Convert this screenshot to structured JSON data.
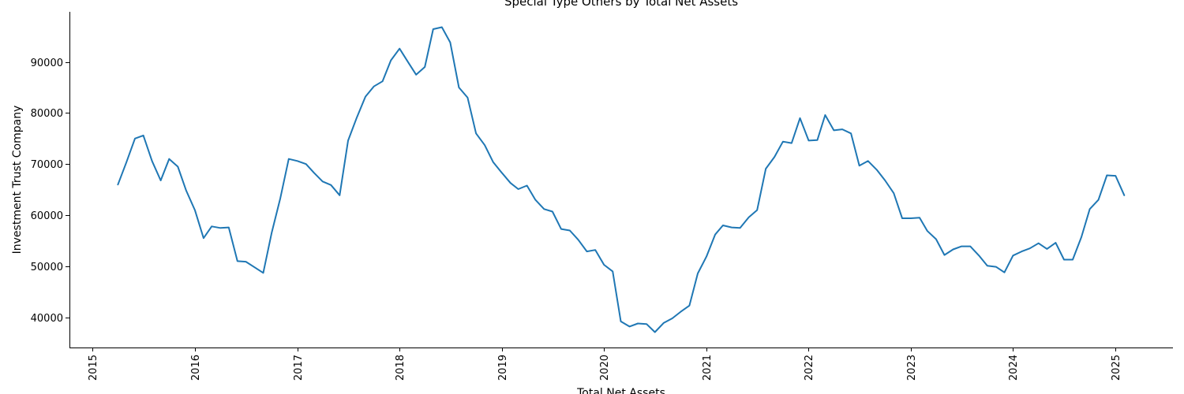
{
  "chart_data": {
    "type": "line",
    "title": "Special Type Others by Total Net Assets",
    "xlabel": "Total Net Assets",
    "ylabel": "Investment Trust Company",
    "x_ticks": [
      "2015",
      "2016",
      "2017",
      "2018",
      "2019",
      "2020",
      "2021",
      "2022",
      "2023",
      "2024",
      "2025"
    ],
    "y_ticks": [
      "40000",
      "50000",
      "60000",
      "70000",
      "80000",
      "90000"
    ],
    "y_tick_values": [
      40000,
      50000,
      60000,
      70000,
      80000,
      90000
    ],
    "xlim": [
      "2014-10-10",
      "2025-07-25"
    ],
    "ylim": [
      34100,
      99800
    ],
    "grid": false,
    "series_color": "#1f77b4",
    "x": [
      "2015-04",
      "2015-05",
      "2015-06",
      "2015-07",
      "2015-08",
      "2015-09",
      "2015-10",
      "2015-11",
      "2015-12",
      "2016-01",
      "2016-02",
      "2016-03",
      "2016-04",
      "2016-05",
      "2016-06",
      "2016-07",
      "2016-08",
      "2016-09",
      "2016-10",
      "2016-11",
      "2016-12",
      "2017-01",
      "2017-02",
      "2017-03",
      "2017-04",
      "2017-05",
      "2017-06",
      "2017-07",
      "2017-08",
      "2017-09",
      "2017-10",
      "2017-11",
      "2017-12",
      "2018-01",
      "2018-02",
      "2018-03",
      "2018-04",
      "2018-05",
      "2018-06",
      "2018-07",
      "2018-08",
      "2018-09",
      "2018-10",
      "2018-11",
      "2018-12",
      "2019-01",
      "2019-02",
      "2019-03",
      "2019-04",
      "2019-05",
      "2019-06",
      "2019-07",
      "2019-08",
      "2019-09",
      "2019-10",
      "2019-11",
      "2019-12",
      "2020-01",
      "2020-02",
      "2020-03",
      "2020-04",
      "2020-05",
      "2020-06",
      "2020-07",
      "2020-08",
      "2020-09",
      "2020-10",
      "2020-11",
      "2020-12",
      "2021-01",
      "2021-02",
      "2021-03",
      "2021-04",
      "2021-05",
      "2021-06",
      "2021-07",
      "2021-08",
      "2021-09",
      "2021-10",
      "2021-11",
      "2021-12",
      "2022-01",
      "2022-02",
      "2022-03",
      "2022-04",
      "2022-05",
      "2022-06",
      "2022-07",
      "2022-08",
      "2022-09",
      "2022-10",
      "2022-11",
      "2022-12",
      "2023-01",
      "2023-02",
      "2023-03",
      "2023-04",
      "2023-05",
      "2023-06",
      "2023-07",
      "2023-08",
      "2023-09",
      "2023-10",
      "2023-11",
      "2023-12",
      "2024-01",
      "2024-02",
      "2024-03",
      "2024-04",
      "2024-05",
      "2024-06",
      "2024-07",
      "2024-08",
      "2024-09",
      "2024-10",
      "2024-11",
      "2024-12",
      "2025-01",
      "2025-02"
    ],
    "values": [
      66000,
      70300,
      75000,
      75600,
      70600,
      66800,
      71000,
      69500,
      64800,
      61000,
      55500,
      57800,
      57500,
      57600,
      51000,
      50900,
      49800,
      48700,
      56500,
      63300,
      71000,
      70600,
      70000,
      68300,
      66600,
      65900,
      63900,
      74600,
      79100,
      83200,
      85200,
      86200,
      90300,
      92600,
      89900,
      87500,
      89000,
      96400,
      96800,
      93800,
      85000,
      83000,
      76000,
      73700,
      70400,
      68300,
      66300,
      65100,
      65800,
      63000,
      61200,
      60700,
      57300,
      57000,
      55200,
      52900,
      53200,
      50300,
      49000,
      39200,
      38200,
      38800,
      38700,
      37100,
      38900,
      39800,
      41100,
      42300,
      48600,
      51900,
      56200,
      58000,
      57600,
      57500,
      59600,
      61000,
      69100,
      71400,
      74400,
      74100,
      79000,
      74600,
      74700,
      79600,
      76600,
      76800,
      76000,
      69700,
      70600,
      68900,
      66800,
      64300,
      59400,
      59400,
      59500,
      56900,
      55300,
      52200,
      53300,
      53900,
      53900,
      52100,
      50100,
      49900,
      48800,
      52100,
      52900,
      53500,
      54500,
      53400,
      54600,
      51300,
      51300,
      55700,
      61200,
      63000,
      67800,
      67700,
      63900
    ]
  }
}
